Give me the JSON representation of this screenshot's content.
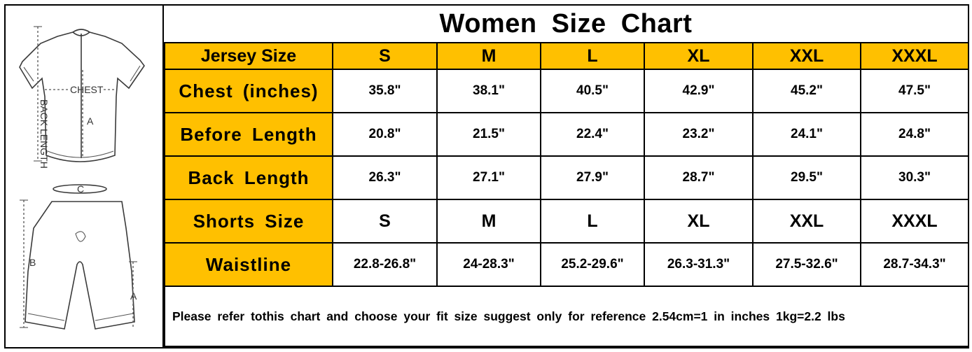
{
  "title": "Women Size Chart",
  "illustration": {
    "labels": {
      "chest": "CHEST",
      "back_length": "BACK LENGTH",
      "jersey_a": "A",
      "waist_c": "C",
      "shorts_b": "B",
      "shorts_a": "A"
    }
  },
  "columns": [
    "S",
    "M",
    "L",
    "XL",
    "XXL",
    "XXXL"
  ],
  "rows": {
    "jersey_size": {
      "label": "Jersey Size",
      "values": [
        "S",
        "M",
        "L",
        "XL",
        "XXL",
        "XXXL"
      ]
    },
    "chest": {
      "label": "Chest (inches)",
      "values": [
        "35.8\"",
        "38.1\"",
        "40.5\"",
        "42.9\"",
        "45.2\"",
        "47.5\""
      ]
    },
    "before_length": {
      "label": "Before Length",
      "values": [
        "20.8\"",
        "21.5\"",
        "22.4\"",
        "23.2\"",
        "24.1\"",
        "24.8\""
      ]
    },
    "back_length": {
      "label": "Back Length",
      "values": [
        "26.3\"",
        "27.1\"",
        "27.9\"",
        "28.7\"",
        "29.5\"",
        "30.3\""
      ]
    },
    "shorts_size": {
      "label": "Shorts Size",
      "values": [
        "S",
        "M",
        "L",
        "XL",
        "XXL",
        "XXXL"
      ]
    },
    "waistline": {
      "label": "Waistline",
      "values": [
        "22.8-26.8\"",
        "24-28.3\"",
        "25.2-29.6\"",
        "26.3-31.3\"",
        "27.5-32.6\"",
        "28.7-34.3\""
      ]
    }
  },
  "note": "Please refer tothis chart and choose your fit size suggest only for reference 2.54cm=1 in inches 1kg=2.2 lbs",
  "colors": {
    "header_fill": "#ffc000",
    "border": "#000000"
  }
}
